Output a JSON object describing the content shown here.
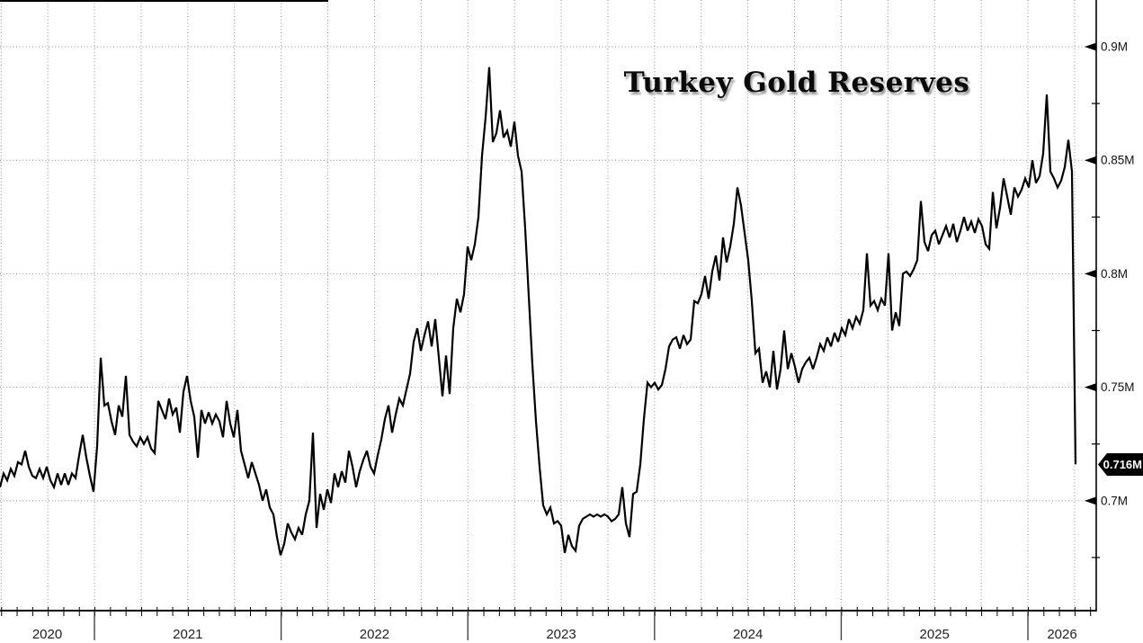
{
  "title": "Turkey Gold Reserves",
  "colors": {
    "line": "#000000",
    "grid": "#8f8f8f",
    "axis": "#000000",
    "tag_background": "#000000",
    "tag_text": "#ffffff",
    "title_text": "#0a0a0a"
  },
  "chart_data": {
    "type": "line",
    "title": "Turkey Gold Reserves",
    "unit": "M",
    "grid": "dotted, quarterly vertical, major horizontal",
    "legend": "none",
    "x_range": [
      2020.494,
      2026.366
    ],
    "y_range": [
      0.6516,
      0.9206
    ],
    "x_axis": {
      "year_labels": [
        "2020",
        "2021",
        "2022",
        "2023",
        "2024",
        "2025",
        "2026"
      ],
      "years": [
        2020,
        2021,
        2022,
        2023,
        2024,
        2025,
        2026
      ],
      "minor_tick_step_years": 0.08333,
      "gridline_step_years": 0.25
    },
    "y_axis": {
      "side": "right",
      "major": [
        {
          "value": 0.9,
          "label": "0.9M"
        },
        {
          "value": 0.85,
          "label": "0.85M"
        },
        {
          "value": 0.8,
          "label": "0.8M"
        },
        {
          "value": 0.75,
          "label": "0.75M"
        },
        {
          "value": 0.7,
          "label": "0.7M"
        }
      ],
      "minor_values": [
        0.875,
        0.825,
        0.775,
        0.725,
        0.675
      ]
    },
    "series": [
      {
        "name": "Turkey Gold Reserves",
        "x_start": 2020.494,
        "x_step": 0.0192678,
        "values": [
          0.706,
          0.712,
          0.709,
          0.714,
          0.711,
          0.717,
          0.716,
          0.722,
          0.715,
          0.711,
          0.71,
          0.714,
          0.71,
          0.715,
          0.709,
          0.706,
          0.712,
          0.707,
          0.712,
          0.707,
          0.712,
          0.71,
          0.72,
          0.729,
          0.719,
          0.711,
          0.704,
          0.724,
          0.763,
          0.742,
          0.743,
          0.735,
          0.729,
          0.742,
          0.737,
          0.755,
          0.729,
          0.726,
          0.724,
          0.728,
          0.725,
          0.728,
          0.723,
          0.721,
          0.744,
          0.74,
          0.736,
          0.745,
          0.738,
          0.741,
          0.73,
          0.748,
          0.755,
          0.744,
          0.737,
          0.719,
          0.74,
          0.734,
          0.739,
          0.734,
          0.738,
          0.735,
          0.728,
          0.744,
          0.734,
          0.728,
          0.74,
          0.722,
          0.716,
          0.71,
          0.717,
          0.712,
          0.707,
          0.7,
          0.705,
          0.697,
          0.694,
          0.684,
          0.676,
          0.681,
          0.69,
          0.686,
          0.683,
          0.688,
          0.685,
          0.694,
          0.7,
          0.73,
          0.688,
          0.703,
          0.696,
          0.705,
          0.699,
          0.712,
          0.706,
          0.713,
          0.708,
          0.722,
          0.715,
          0.706,
          0.713,
          0.718,
          0.722,
          0.715,
          0.712,
          0.72,
          0.727,
          0.736,
          0.742,
          0.73,
          0.738,
          0.745,
          0.742,
          0.749,
          0.756,
          0.77,
          0.776,
          0.766,
          0.773,
          0.779,
          0.768,
          0.78,
          0.763,
          0.746,
          0.764,
          0.747,
          0.776,
          0.789,
          0.783,
          0.791,
          0.812,
          0.806,
          0.813,
          0.825,
          0.852,
          0.869,
          0.891,
          0.858,
          0.862,
          0.872,
          0.86,
          0.863,
          0.856,
          0.867,
          0.852,
          0.845,
          0.82,
          0.79,
          0.76,
          0.735,
          0.715,
          0.698,
          0.694,
          0.697,
          0.69,
          0.691,
          0.689,
          0.677,
          0.685,
          0.68,
          0.678,
          0.689,
          0.692,
          0.693,
          0.694,
          0.693,
          0.694,
          0.693,
          0.694,
          0.693,
          0.691,
          0.692,
          0.694,
          0.706,
          0.69,
          0.684,
          0.703,
          0.704,
          0.716,
          0.736,
          0.752,
          0.75,
          0.752,
          0.749,
          0.751,
          0.758,
          0.768,
          0.771,
          0.772,
          0.767,
          0.773,
          0.769,
          0.771,
          0.788,
          0.787,
          0.791,
          0.799,
          0.789,
          0.801,
          0.808,
          0.797,
          0.816,
          0.805,
          0.812,
          0.822,
          0.838,
          0.83,
          0.818,
          0.806,
          0.788,
          0.765,
          0.767,
          0.752,
          0.757,
          0.75,
          0.766,
          0.749,
          0.758,
          0.775,
          0.758,
          0.765,
          0.759,
          0.752,
          0.758,
          0.761,
          0.763,
          0.758,
          0.763,
          0.769,
          0.766,
          0.772,
          0.768,
          0.774,
          0.77,
          0.776,
          0.773,
          0.78,
          0.776,
          0.781,
          0.778,
          0.784,
          0.809,
          0.786,
          0.788,
          0.784,
          0.789,
          0.786,
          0.809,
          0.775,
          0.783,
          0.777,
          0.8,
          0.801,
          0.799,
          0.802,
          0.806,
          0.832,
          0.814,
          0.81,
          0.817,
          0.819,
          0.813,
          0.817,
          0.821,
          0.816,
          0.822,
          0.814,
          0.819,
          0.825,
          0.819,
          0.823,
          0.818,
          0.824,
          0.821,
          0.813,
          0.811,
          0.836,
          0.82,
          0.829,
          0.842,
          0.834,
          0.826,
          0.838,
          0.834,
          0.837,
          0.842,
          0.838,
          0.85,
          0.84,
          0.843,
          0.853,
          0.879,
          0.845,
          0.842,
          0.838,
          0.841,
          0.847,
          0.859,
          0.845,
          0.716
        ]
      }
    ],
    "last_point": {
      "x": 2026.255,
      "value": 0.716,
      "label": "0.716M"
    }
  }
}
